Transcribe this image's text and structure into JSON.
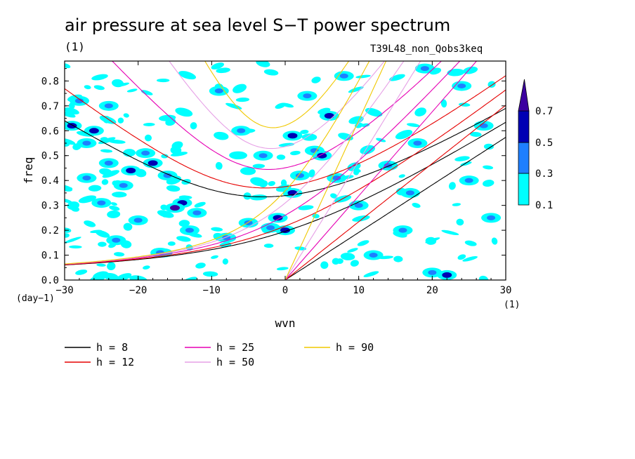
{
  "title": "air pressure at sea level S−T power spectrum",
  "subtitle_left": "(1)",
  "run_name": "T39L48_non_Qobs3keq",
  "chart_data": {
    "type": "heatmap",
    "xlabel": "wvn",
    "ylabel": "freq",
    "x_unit": "(1)",
    "y_unit": "(day−1)",
    "xlim": [
      -30,
      30
    ],
    "ylim": [
      0,
      0.88
    ],
    "x_ticks": [
      -30,
      -20,
      -10,
      0,
      10,
      20,
      30
    ],
    "x_tick_labels": [
      "−30",
      "−20",
      "−10",
      "0",
      "10",
      "20",
      "30"
    ],
    "y_ticks": [
      0.0,
      0.1,
      0.2,
      0.3,
      0.4,
      0.5,
      0.6,
      0.7,
      0.8
    ],
    "y_tick_labels": [
      "0.0",
      "0.1",
      "0.2",
      "0.3",
      "0.4",
      "0.5",
      "0.6",
      "0.7",
      "0.8"
    ],
    "colorbar": {
      "levels": [
        0.1,
        0.3,
        0.5,
        0.7
      ],
      "labels": [
        "0.1",
        "0.3",
        "0.5",
        "0.7"
      ],
      "colors": [
        "#00ffff",
        "#1e7fff",
        "#0000b4",
        "#3c00a0"
      ]
    },
    "patches": [
      {
        "x": -29,
        "y": 0.62,
        "v": 0.5
      },
      {
        "x": -27,
        "y": 0.55,
        "v": 0.3
      },
      {
        "x": -26,
        "y": 0.6,
        "v": 0.5
      },
      {
        "x": -24,
        "y": 0.47,
        "v": 0.3
      },
      {
        "x": -22,
        "y": 0.38,
        "v": 0.3
      },
      {
        "x": -21,
        "y": 0.44,
        "v": 0.5
      },
      {
        "x": -19,
        "y": 0.51,
        "v": 0.3
      },
      {
        "x": -18,
        "y": 0.47,
        "v": 0.5
      },
      {
        "x": -16,
        "y": 0.42,
        "v": 0.3
      },
      {
        "x": -14,
        "y": 0.31,
        "v": 0.5
      },
      {
        "x": -15,
        "y": 0.29,
        "v": 0.7
      },
      {
        "x": -12,
        "y": 0.27,
        "v": 0.3
      },
      {
        "x": -13,
        "y": 0.2,
        "v": 0.3
      },
      {
        "x": -20,
        "y": 0.24,
        "v": 0.3
      },
      {
        "x": -25,
        "y": 0.31,
        "v": 0.3
      },
      {
        "x": -27,
        "y": 0.41,
        "v": 0.3
      },
      {
        "x": -23,
        "y": 0.16,
        "v": 0.3
      },
      {
        "x": -17,
        "y": 0.11,
        "v": 0.3
      },
      {
        "x": -28,
        "y": 0.72,
        "v": 0.3
      },
      {
        "x": -24,
        "y": 0.7,
        "v": 0.3
      },
      {
        "x": -8,
        "y": 0.17,
        "v": 0.3
      },
      {
        "x": -5,
        "y": 0.23,
        "v": 0.3
      },
      {
        "x": -2,
        "y": 0.21,
        "v": 0.3
      },
      {
        "x": -1,
        "y": 0.25,
        "v": 0.5
      },
      {
        "x": 0,
        "y": 0.2,
        "v": 0.5
      },
      {
        "x": 1,
        "y": 0.35,
        "v": 0.5
      },
      {
        "x": 2,
        "y": 0.42,
        "v": 0.3
      },
      {
        "x": 1,
        "y": 0.58,
        "v": 0.5
      },
      {
        "x": 4,
        "y": 0.52,
        "v": 0.3
      },
      {
        "x": 5,
        "y": 0.5,
        "v": 0.5
      },
      {
        "x": 6,
        "y": 0.66,
        "v": 0.5
      },
      {
        "x": 7,
        "y": 0.41,
        "v": 0.3
      },
      {
        "x": 3,
        "y": 0.74,
        "v": 0.3
      },
      {
        "x": -6,
        "y": 0.6,
        "v": 0.3
      },
      {
        "x": -9,
        "y": 0.76,
        "v": 0.3
      },
      {
        "x": 10,
        "y": 0.3,
        "v": 0.3
      },
      {
        "x": 14,
        "y": 0.46,
        "v": 0.3
      },
      {
        "x": 18,
        "y": 0.55,
        "v": 0.3
      },
      {
        "x": 22,
        "y": 0.02,
        "v": 0.5
      },
      {
        "x": 20,
        "y": 0.03,
        "v": 0.3
      },
      {
        "x": 25,
        "y": 0.4,
        "v": 0.3
      },
      {
        "x": 27,
        "y": 0.62,
        "v": 0.3
      },
      {
        "x": 16,
        "y": 0.2,
        "v": 0.3
      },
      {
        "x": 12,
        "y": 0.1,
        "v": 0.3
      },
      {
        "x": 24,
        "y": 0.78,
        "v": 0.3
      },
      {
        "x": 19,
        "y": 0.85,
        "v": 0.3
      },
      {
        "x": 8,
        "y": 0.82,
        "v": 0.3
      },
      {
        "x": -3,
        "y": 0.5,
        "v": 0.3
      },
      {
        "x": 28,
        "y": 0.25,
        "v": 0.3
      },
      {
        "x": 17,
        "y": 0.35,
        "v": 0.3
      }
    ],
    "series": [
      {
        "name": "h =  8",
        "h": 8,
        "color": "#000000"
      },
      {
        "name": "h = 12",
        "h": 12,
        "color": "#e60000"
      },
      {
        "name": "h = 25",
        "h": 25,
        "color": "#e600b4"
      },
      {
        "name": "h = 50",
        "h": 50,
        "color": "#e6a0e6"
      },
      {
        "name": "h = 90",
        "h": 90,
        "color": "#f0c800"
      }
    ]
  }
}
